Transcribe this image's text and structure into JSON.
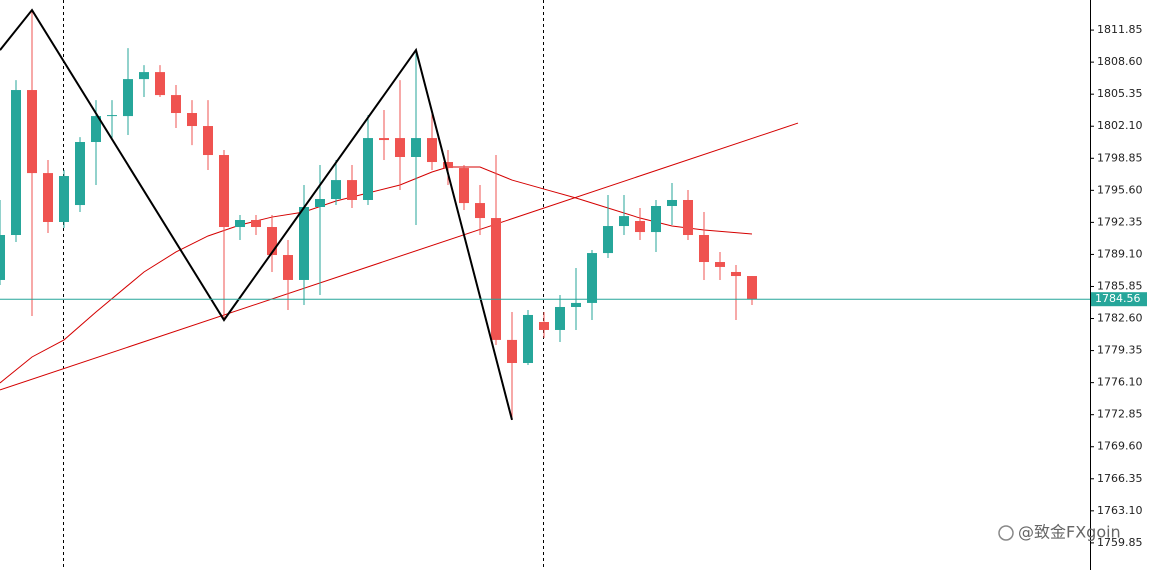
{
  "chart_data": {
    "type": "candlestick",
    "ylim": [
      1757.1,
      1814.9
    ],
    "yticks": [
      1811.85,
      {
        "value": 1808.6,
        "label": "1808.60"
      },
      1805.35,
      {
        "value": 1802.1,
        "label": "1802.10"
      },
      1798.85,
      {
        "value": 1795.6,
        "label": "1795.60"
      },
      1792.35,
      {
        "value": 1789.1,
        "label": "1789.10"
      },
      1785.85,
      {
        "value": 1782.6,
        "label": "1782.60"
      },
      1779.35,
      {
        "value": 1776.1,
        "label": "1776.10"
      },
      1772.85,
      {
        "value": 1769.6,
        "label": "1769.60"
      },
      1766.35,
      {
        "value": 1763.1,
        "label": "1763.10"
      },
      1759.85
    ],
    "up_color": "#26a69a",
    "down_color": "#ef5350",
    "open": [
      1786.51,
      1791.07,
      1805.77,
      1797.35,
      1792.39,
      1794.11,
      1800.5,
      1803.13,
      1803.13,
      1806.88,
      1807.59,
      1805.26,
      1803.44,
      1802.12,
      1799.18,
      1791.88,
      1792.59,
      1791.88,
      1789.04,
      1786.51,
      1793.91,
      1794.72,
      1796.64,
      1794.62,
      1800.9,
      1800.9,
      1798.98,
      1800.9,
      1798.47,
      1797.86,
      1794.31,
      1792.79,
      1780.43,
      1778.09,
      1782.25,
      1781.44,
      1783.77,
      1784.18,
      1789.24,
      1791.98,
      1792.49,
      1791.37,
      1794.01,
      1794.62,
      1791.07,
      1788.33,
      1787.32,
      1786.91
    ],
    "high": [
      1794.62,
      1806.78,
      1813.88,
      1798.67,
      1797.66,
      1801.0,
      1804.75,
      1804.75,
      1810.02,
      1808.3,
      1808.3,
      1806.28,
      1804.75,
      1804.75,
      1799.69,
      1793.1,
      1793.1,
      1793.1,
      1790.56,
      1796.14,
      1798.17,
      1798.67,
      1798.17,
      1803.23,
      1803.74,
      1806.78,
      1809.82,
      1803.74,
      1799.69,
      1798.17,
      1796.14,
      1799.18,
      1783.26,
      1783.47,
      1783.26,
      1784.99,
      1787.72,
      1789.55,
      1795.12,
      1795.12,
      1793.81,
      1794.62,
      1796.34,
      1795.63,
      1793.4,
      1789.35,
      1788.03,
      1786.91
    ],
    "low": [
      1786.0,
      1790.36,
      1782.86,
      1791.27,
      1791.78,
      1793.4,
      1796.14,
      1800.7,
      1801.21,
      1805.06,
      1805.06,
      1801.92,
      1800.19,
      1797.66,
      1782.45,
      1790.56,
      1791.07,
      1787.32,
      1783.47,
      1783.97,
      1784.99,
      1794.11,
      1793.81,
      1794.11,
      1798.67,
      1795.63,
      1792.08,
      1797.66,
      1796.14,
      1793.6,
      1791.07,
      1779.92,
      1772.32,
      1777.89,
      1780.63,
      1780.22,
      1781.44,
      1782.45,
      1788.74,
      1791.07,
      1790.56,
      1789.35,
      1792.08,
      1790.56,
      1786.51,
      1786.51,
      1782.45,
      1783.97
    ],
    "close": [
      1791.07,
      1805.77,
      1797.35,
      1792.39,
      1797.05,
      1800.5,
      1803.13,
      1803.23,
      1806.88,
      1807.59,
      1805.26,
      1803.44,
      1802.12,
      1799.18,
      1791.88,
      1792.59,
      1791.88,
      1789.04,
      1786.51,
      1793.91,
      1794.72,
      1796.64,
      1794.62,
      1800.9,
      1800.7,
      1798.98,
      1800.9,
      1798.47,
      1797.86,
      1794.31,
      1792.79,
      1780.43,
      1778.09,
      1782.96,
      1781.44,
      1783.77,
      1784.18,
      1789.24,
      1791.98,
      1792.99,
      1791.37,
      1794.01,
      1794.62,
      1791.07,
      1788.33,
      1787.83,
      1786.91,
      1784.56
    ],
    "moving_average": {
      "color": "#d40000",
      "x": [
        0,
        2,
        4,
        6,
        9,
        11,
        13,
        15,
        17,
        19,
        21,
        23,
        25,
        27,
        28,
        30,
        32,
        34,
        36,
        38,
        40,
        42,
        44,
        47
      ],
      "values": [
        1776.07,
        1778.7,
        1780.43,
        1783.26,
        1787.32,
        1789.35,
        1790.97,
        1792.08,
        1792.89,
        1793.4,
        1794.52,
        1795.33,
        1796.14,
        1797.46,
        1797.96,
        1797.96,
        1796.64,
        1795.73,
        1794.82,
        1793.81,
        1792.79,
        1791.98,
        1791.58,
        1791.17
      ]
    },
    "trend_line": {
      "color": "#d40000",
      "x": [
        0,
        49.875
      ],
      "values": [
        1775.36,
        1802.42
      ]
    },
    "zigzag": {
      "color": "#000000",
      "x": [
        0,
        2,
        14,
        26,
        32
      ],
      "values": [
        1809.82,
        1813.88,
        1782.45,
        1809.82,
        1772.32
      ]
    },
    "current_price": 1784.56,
    "current_price_color": "#26a69a",
    "watermark": "@致金FXgoin"
  }
}
